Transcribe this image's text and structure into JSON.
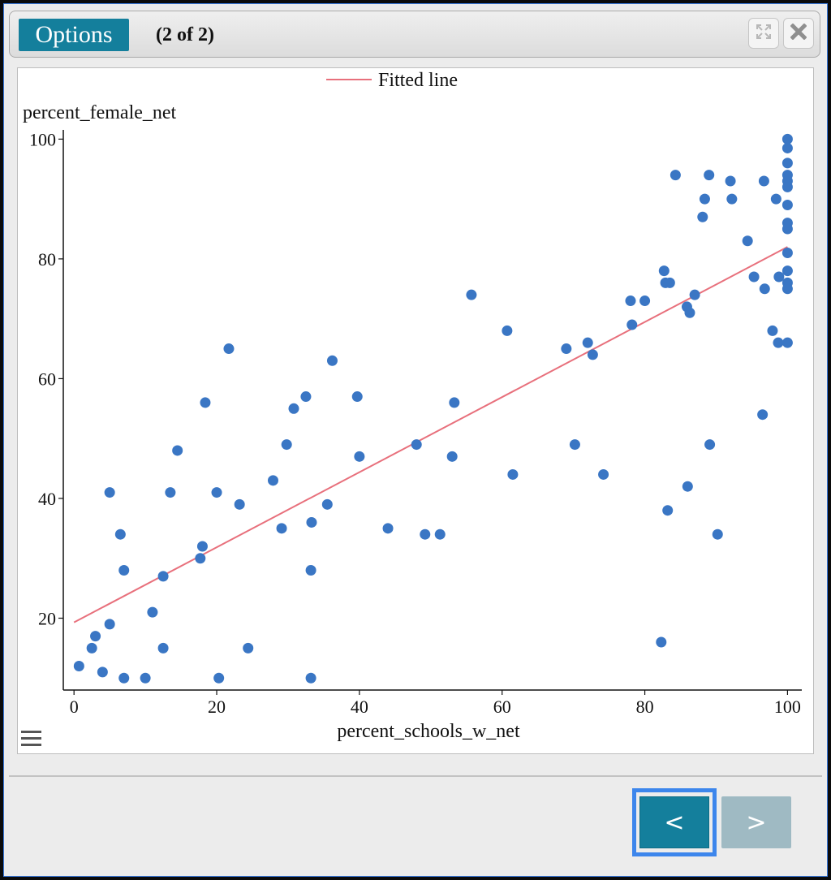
{
  "header": {
    "options_label": "Options",
    "counter": "(2 of 2)",
    "expand_icon": "expand-icon",
    "close_icon": "close-icon"
  },
  "footer": {
    "prev_label": "<",
    "next_label": ">"
  },
  "menu_icon": "hamburger-icon",
  "colors": {
    "accent": "#147f9c",
    "point": "#3a76c4",
    "fitted_line": "#e8707c",
    "disabled_button": "#9fbac3",
    "focus_ring": "#3d86ec"
  },
  "chart_data": {
    "type": "scatter",
    "xlabel": "percent_schools_w_net",
    "ylabel": "percent_female_net",
    "xlim": [
      -1.5,
      102
    ],
    "ylim": [
      8,
      101
    ],
    "xticks": [
      "0",
      "20",
      "40",
      "60",
      "80",
      "100"
    ],
    "yticks": [
      "20",
      "40",
      "60",
      "80",
      "100"
    ],
    "xtick_values": [
      0,
      20,
      40,
      60,
      80,
      100
    ],
    "ytick_values": [
      20,
      40,
      60,
      80,
      100
    ],
    "legend": {
      "label": "Fitted line",
      "position": "top-center"
    },
    "fitted_line": {
      "x": [
        0,
        100
      ],
      "y": [
        19.3,
        82
      ]
    },
    "points": [
      [
        0.7,
        12
      ],
      [
        2.5,
        15
      ],
      [
        3,
        17
      ],
      [
        4,
        11
      ],
      [
        5,
        41
      ],
      [
        5,
        19
      ],
      [
        6.5,
        34
      ],
      [
        7,
        10
      ],
      [
        7,
        28
      ],
      [
        10,
        10
      ],
      [
        11,
        21
      ],
      [
        12.5,
        27
      ],
      [
        12.5,
        15
      ],
      [
        13.5,
        41
      ],
      [
        14.5,
        48
      ],
      [
        17.7,
        30
      ],
      [
        18,
        32
      ],
      [
        18.4,
        56
      ],
      [
        20,
        41
      ],
      [
        20.3,
        10
      ],
      [
        21.7,
        65
      ],
      [
        23.2,
        39
      ],
      [
        24.4,
        15
      ],
      [
        27.9,
        43
      ],
      [
        29.1,
        35
      ],
      [
        29.8,
        49
      ],
      [
        30.8,
        55
      ],
      [
        32.5,
        57
      ],
      [
        33.2,
        28
      ],
      [
        33.2,
        10
      ],
      [
        33.3,
        36
      ],
      [
        35.5,
        39
      ],
      [
        36.2,
        63
      ],
      [
        39.7,
        57
      ],
      [
        40,
        47
      ],
      [
        44,
        35
      ],
      [
        48,
        49
      ],
      [
        49.2,
        34
      ],
      [
        51.3,
        34
      ],
      [
        53,
        47
      ],
      [
        53.3,
        56
      ],
      [
        55.7,
        74
      ],
      [
        60.7,
        68
      ],
      [
        61.5,
        44
      ],
      [
        69,
        65
      ],
      [
        70.2,
        49
      ],
      [
        72,
        66
      ],
      [
        72.7,
        64
      ],
      [
        74.2,
        44
      ],
      [
        78,
        73
      ],
      [
        78.2,
        69
      ],
      [
        80,
        73
      ],
      [
        82.3,
        16
      ],
      [
        82.7,
        78
      ],
      [
        82.9,
        76
      ],
      [
        83.2,
        38
      ],
      [
        83.5,
        76
      ],
      [
        84.3,
        94
      ],
      [
        85.9,
        72
      ],
      [
        86,
        42
      ],
      [
        86.3,
        71
      ],
      [
        87,
        74
      ],
      [
        88.1,
        87
      ],
      [
        88.4,
        90
      ],
      [
        89,
        94
      ],
      [
        89.1,
        49
      ],
      [
        90.2,
        34
      ],
      [
        92,
        93
      ],
      [
        92.2,
        90
      ],
      [
        94.4,
        83
      ],
      [
        95.3,
        77
      ],
      [
        96.5,
        54
      ],
      [
        96.7,
        93
      ],
      [
        96.8,
        75
      ],
      [
        97.9,
        68
      ],
      [
        98.4,
        90
      ],
      [
        98.7,
        66
      ],
      [
        98.8,
        77
      ],
      [
        100,
        100
      ],
      [
        100,
        98.5
      ],
      [
        100,
        96
      ],
      [
        100,
        94
      ],
      [
        100,
        93
      ],
      [
        100,
        92
      ],
      [
        100,
        89
      ],
      [
        100,
        86
      ],
      [
        100,
        85
      ],
      [
        100,
        81
      ],
      [
        100,
        78
      ],
      [
        100,
        76
      ],
      [
        100,
        75
      ],
      [
        100,
        66
      ]
    ]
  }
}
